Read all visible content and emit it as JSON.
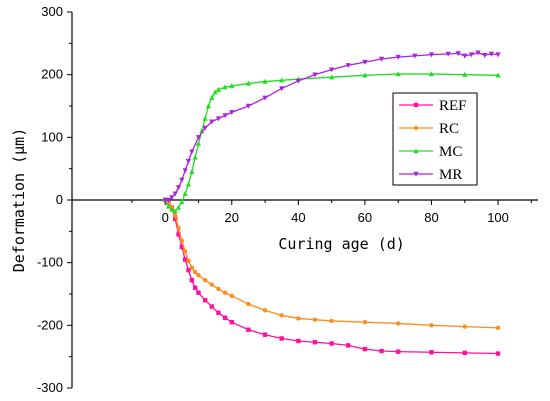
{
  "chart_data": {
    "type": "line",
    "xlabel": "Curing age (d)",
    "ylabel": "Deformation (μm)",
    "xlim": [
      -28,
      112
    ],
    "ylim": [
      -300,
      300
    ],
    "xticks": [
      0,
      20,
      40,
      60,
      80,
      100
    ],
    "yticks": [
      -300,
      -200,
      -100,
      0,
      100,
      200,
      300
    ],
    "grid": false,
    "legend_position": "right",
    "series": [
      {
        "name": "REF",
        "color": "#ff0fa0",
        "marker": "square",
        "x": [
          0,
          1,
          2,
          3,
          4,
          5,
          6,
          7,
          8,
          9,
          10,
          12,
          14,
          16,
          18,
          20,
          25,
          30,
          35,
          40,
          45,
          50,
          55,
          60,
          65,
          70,
          80,
          90,
          100
        ],
        "y": [
          0,
          -5,
          -12,
          -30,
          -55,
          -75,
          -95,
          -112,
          -128,
          -140,
          -148,
          -160,
          -170,
          -180,
          -188,
          -195,
          -207,
          -215,
          -221,
          -225,
          -227,
          -229,
          -232,
          -238,
          -241,
          -242,
          -243,
          -244,
          -245
        ]
      },
      {
        "name": "RC",
        "color": "#ff8c1a",
        "marker": "circle",
        "x": [
          0,
          1,
          2,
          3,
          4,
          5,
          6,
          7,
          8,
          9,
          10,
          12,
          14,
          16,
          18,
          20,
          25,
          30,
          35,
          40,
          45,
          50,
          60,
          70,
          80,
          90,
          100
        ],
        "y": [
          0,
          -5,
          -12,
          -25,
          -45,
          -65,
          -82,
          -97,
          -108,
          -115,
          -120,
          -128,
          -135,
          -142,
          -148,
          -153,
          -166,
          -176,
          -184,
          -189,
          -191,
          -193,
          -195,
          -197,
          -200,
          -202,
          -204
        ]
      },
      {
        "name": "MC",
        "color": "#22dd22",
        "marker": "triangle",
        "x": [
          0,
          1,
          2,
          3,
          4,
          5,
          6,
          7,
          8,
          9,
          10,
          11,
          12,
          13,
          14,
          15,
          16,
          18,
          20,
          25,
          30,
          35,
          40,
          50,
          60,
          70,
          80,
          90,
          100
        ],
        "y": [
          0,
          -10,
          -15,
          -18,
          -12,
          -3,
          10,
          25,
          45,
          68,
          90,
          110,
          130,
          150,
          163,
          172,
          176,
          180,
          182,
          186,
          189,
          191,
          193,
          196,
          199,
          201,
          201,
          200,
          199
        ]
      },
      {
        "name": "MR",
        "color": "#aa22dd",
        "marker": "triangle-down",
        "x": [
          0,
          1,
          2,
          3,
          4,
          5,
          6,
          7,
          8,
          10,
          12,
          14,
          16,
          18,
          20,
          25,
          30,
          35,
          40,
          45,
          50,
          55,
          60,
          65,
          70,
          75,
          80,
          85,
          88,
          90,
          92,
          94,
          96,
          98,
          100
        ],
        "y": [
          0,
          0,
          4,
          10,
          20,
          32,
          47,
          62,
          77,
          100,
          115,
          125,
          130,
          135,
          140,
          150,
          163,
          178,
          190,
          200,
          208,
          215,
          220,
          225,
          228,
          230,
          232,
          233,
          234,
          230,
          232,
          235,
          231,
          233,
          232
        ]
      }
    ]
  }
}
